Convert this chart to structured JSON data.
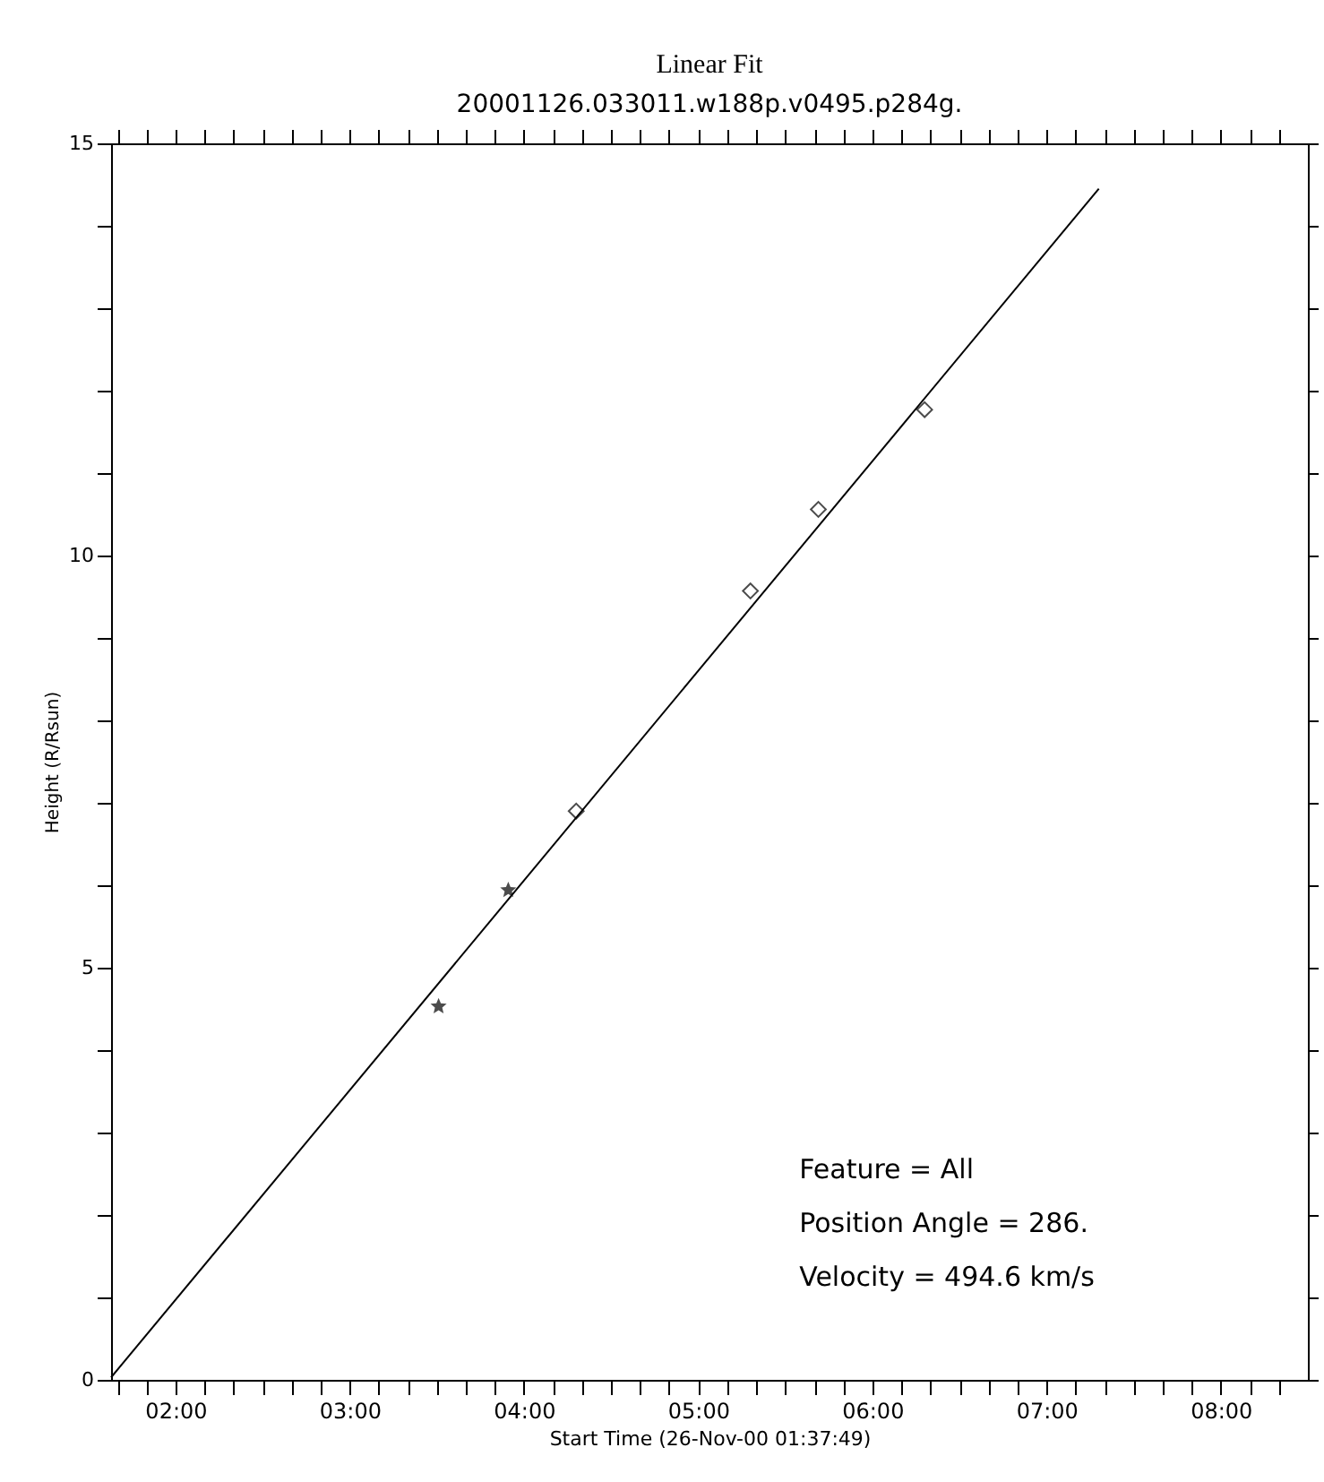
{
  "chart_data": {
    "type": "scatter",
    "title": "Linear Fit",
    "subtitle": "20001126.033011.w188p.v0495.p284g.",
    "xlabel": "Start Time (26-Nov-00 01:37:49)",
    "ylabel": "Height (R/Rsun)",
    "series": [
      {
        "type": "line",
        "color": "#000000",
        "marker": "none",
        "line_style": "solid",
        "x": [
          1.63,
          7.3
        ],
        "values": [
          0.03,
          14.45
        ]
      },
      {
        "color": "#000000",
        "marker": "star",
        "x": [
          3.51,
          3.91
        ],
        "values": [
          4.53,
          5.94
        ]
      },
      {
        "color": "#000000",
        "marker": "diamond",
        "x": [
          4.3,
          5.3,
          5.69,
          6.3
        ],
        "values": [
          6.9,
          9.57,
          10.56,
          11.77
        ]
      }
    ],
    "xlim": [
      1.63,
      8.5
    ],
    "ylim": [
      0,
      15
    ],
    "xticks": [
      {
        "value": 1.6667,
        "label": null
      },
      {
        "value": 1.8333,
        "label": null
      },
      {
        "value": 2,
        "label": "02:00"
      },
      {
        "value": 2.1667,
        "label": null
      },
      {
        "value": 2.3333,
        "label": null
      },
      {
        "value": 2.5,
        "label": null
      },
      {
        "value": 2.6667,
        "label": null
      },
      {
        "value": 2.8333,
        "label": null
      },
      {
        "value": 3,
        "label": "03:00"
      },
      {
        "value": 3.1667,
        "label": null
      },
      {
        "value": 3.3333,
        "label": null
      },
      {
        "value": 3.5,
        "label": null
      },
      {
        "value": 3.6667,
        "label": null
      },
      {
        "value": 3.8333,
        "label": null
      },
      {
        "value": 4,
        "label": "04:00"
      },
      {
        "value": 4.1667,
        "label": null
      },
      {
        "value": 4.3333,
        "label": null
      },
      {
        "value": 4.5,
        "label": null
      },
      {
        "value": 4.6667,
        "label": null
      },
      {
        "value": 4.8333,
        "label": null
      },
      {
        "value": 5,
        "label": "05:00"
      },
      {
        "value": 5.1667,
        "label": null
      },
      {
        "value": 5.3333,
        "label": null
      },
      {
        "value": 5.5,
        "label": null
      },
      {
        "value": 5.6667,
        "label": null
      },
      {
        "value": 5.8333,
        "label": null
      },
      {
        "value": 6,
        "label": "06:00"
      },
      {
        "value": 6.1667,
        "label": null
      },
      {
        "value": 6.3333,
        "label": null
      },
      {
        "value": 6.5,
        "label": null
      },
      {
        "value": 6.6667,
        "label": null
      },
      {
        "value": 6.8333,
        "label": null
      },
      {
        "value": 7,
        "label": "07:00"
      },
      {
        "value": 7.1667,
        "label": null
      },
      {
        "value": 7.3333,
        "label": null
      },
      {
        "value": 7.5,
        "label": null
      },
      {
        "value": 7.6667,
        "label": null
      },
      {
        "value": 7.8333,
        "label": null
      },
      {
        "value": 8,
        "label": "08:00"
      },
      {
        "value": 8.1667,
        "label": null
      },
      {
        "value": 8.3333,
        "label": null
      }
    ],
    "yticks": [
      0,
      {
        "value": 1,
        "label": null
      },
      {
        "value": 2,
        "label": null
      },
      {
        "value": 3,
        "label": null
      },
      {
        "value": 4,
        "label": null
      },
      5,
      {
        "value": 6,
        "label": null
      },
      {
        "value": 7,
        "label": null
      },
      {
        "value": 8,
        "label": null
      },
      {
        "value": 9,
        "label": null
      },
      10,
      {
        "value": 11,
        "label": null
      },
      {
        "value": 12,
        "label": null
      },
      {
        "value": 13,
        "label": null
      },
      {
        "value": 14,
        "label": null
      },
      15
    ],
    "grid": false,
    "legend": false,
    "annotations": [
      "Feature = All",
      "Position Angle =  286.",
      "Velocity =  494.6 km/s"
    ]
  }
}
